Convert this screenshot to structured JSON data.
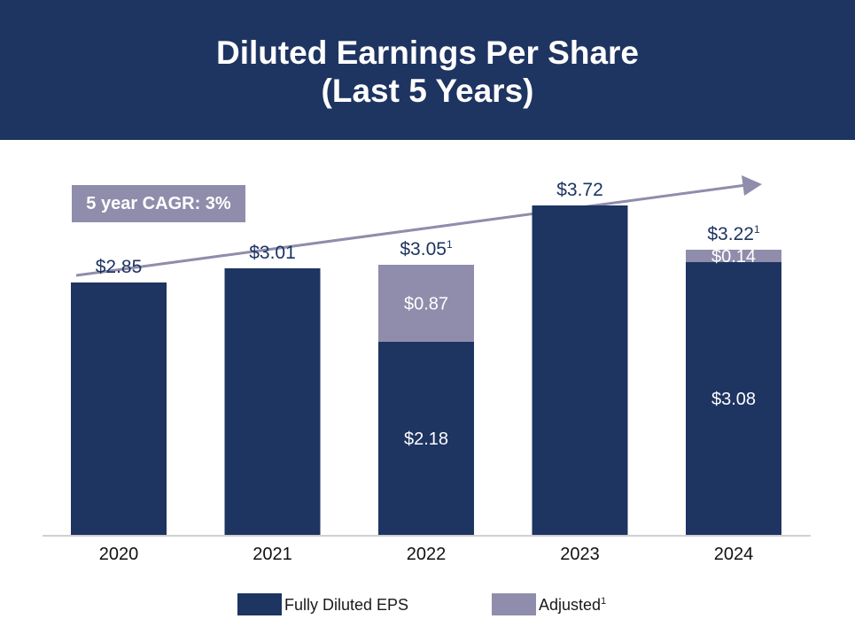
{
  "title": {
    "line1": "Diluted Earnings Per Share",
    "line2": "(Last 5 Years)"
  },
  "cagr_label": "5 year CAGR: 3%",
  "colors": {
    "banner": "#1e3461",
    "fully_diluted": "#1e3461",
    "adjusted": "#8f8dab",
    "arrow": "#8f8dab"
  },
  "chart_data": {
    "type": "bar",
    "stacked": true,
    "categories": [
      "2020",
      "2021",
      "2022",
      "2023",
      "2024"
    ],
    "series": [
      {
        "name": "Fully Diluted EPS",
        "values": [
          2.85,
          3.01,
          2.18,
          3.72,
          3.08
        ],
        "labels": [
          "",
          "",
          "$2.18",
          "",
          "$3.08"
        ]
      },
      {
        "name": "Adjusted",
        "values": [
          0,
          0,
          0.87,
          0,
          0.14
        ],
        "labels": [
          "",
          "",
          "$0.87",
          "",
          "$0.14"
        ]
      }
    ],
    "totals": [
      "$2.85",
      "$3.01",
      "$3.05",
      "$3.72",
      "$3.22"
    ],
    "total_footnotes": [
      "",
      "",
      "1",
      "",
      "1"
    ],
    "ylim": [
      0,
      4.0
    ],
    "legend": [
      {
        "label": "Fully Diluted EPS",
        "footnote": ""
      },
      {
        "label": "Adjusted",
        "footnote": "1"
      }
    ],
    "legend_position": "bottom",
    "annotation": "5 year CAGR: 3%"
  }
}
